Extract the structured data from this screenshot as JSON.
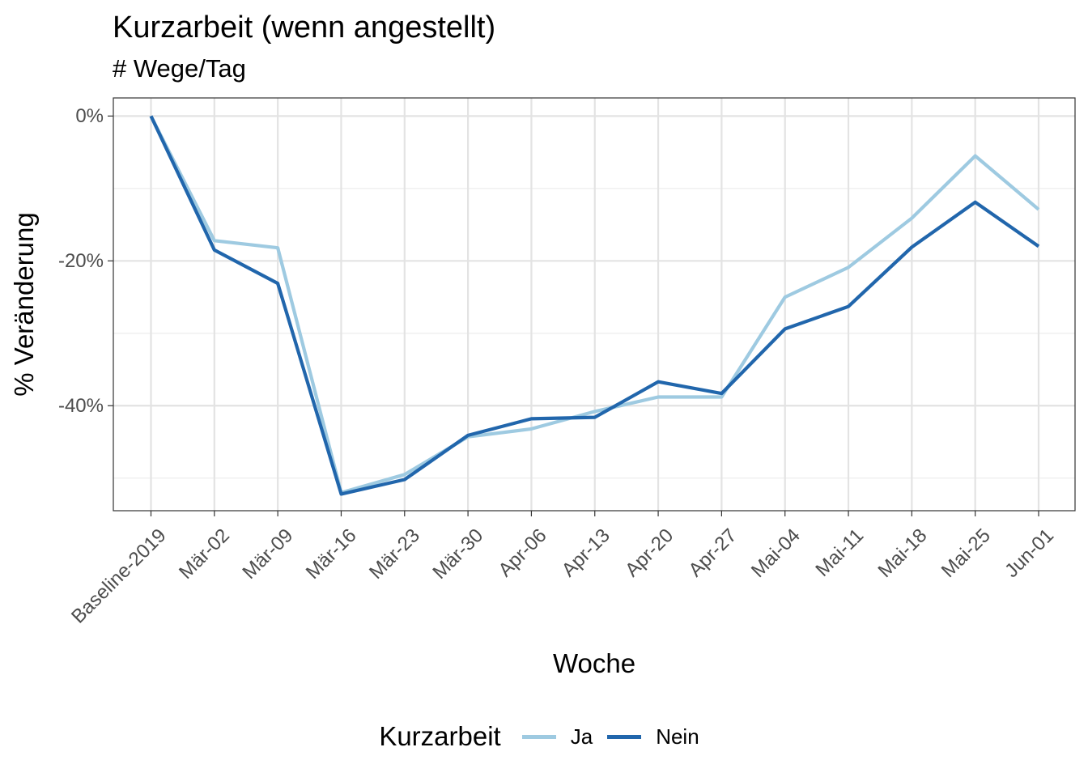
{
  "chart_data": {
    "type": "line",
    "title": "Kurzarbeit (wenn angestellt)",
    "subtitle": "# Wege/Tag",
    "xlabel": "Woche",
    "ylabel": "% Veränderung",
    "categories": [
      "Baseline-2019",
      "Mär-02",
      "Mär-09",
      "Mär-16",
      "Mär-23",
      "Mär-30",
      "Apr-06",
      "Apr-13",
      "Apr-20",
      "Apr-27",
      "Mai-04",
      "Mai-11",
      "Mai-18",
      "Mai-25",
      "Jun-01"
    ],
    "yticks": [
      0,
      -20,
      -40
    ],
    "ytick_labels": [
      "0%",
      "-20%",
      "-40%"
    ],
    "ylim": [
      -54.5,
      2.5
    ],
    "grid": true,
    "legend": {
      "title": "Kurzarbeit",
      "position": "bottom"
    },
    "series": [
      {
        "name": "Ja",
        "color": "#9ecae1",
        "values": [
          0,
          -17.2,
          -18.2,
          -52.0,
          -49.5,
          -44.3,
          -43.2,
          -40.8,
          -38.8,
          -38.8,
          -25.0,
          -20.9,
          -14.1,
          -5.5,
          -12.9
        ]
      },
      {
        "name": "Nein",
        "color": "#2166ac",
        "values": [
          0,
          -18.5,
          -23.1,
          -52.2,
          -50.2,
          -44.1,
          -41.8,
          -41.6,
          -36.7,
          -38.3,
          -29.4,
          -26.3,
          -18.1,
          -11.9,
          -18.0
        ]
      }
    ]
  }
}
